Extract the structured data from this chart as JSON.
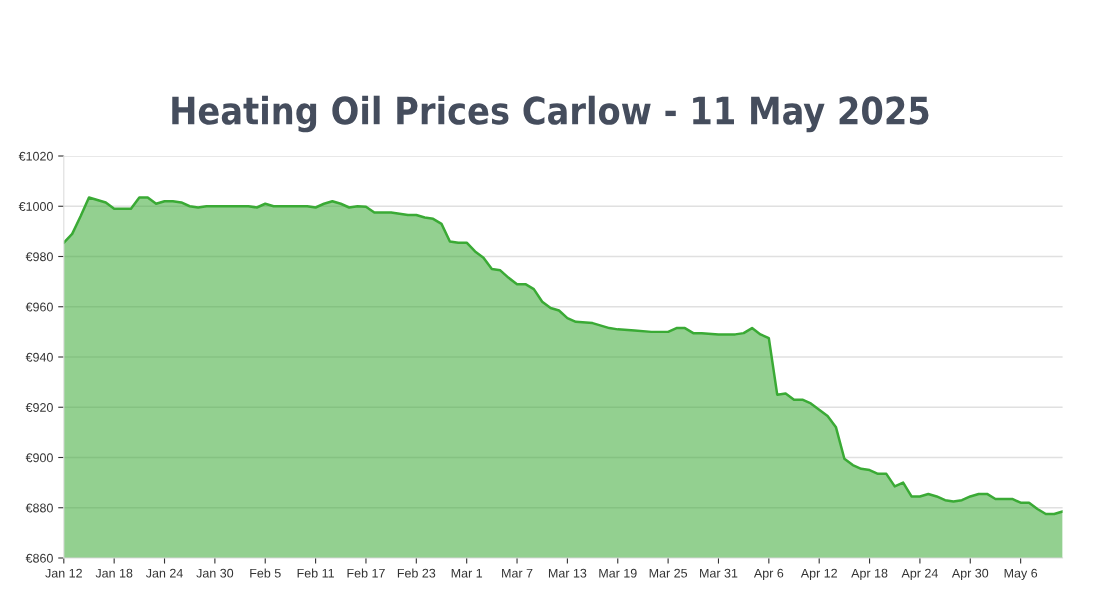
{
  "chart_data": {
    "type": "area",
    "title": "Heating Oil Prices Carlow - 11 May 2025",
    "x": [
      "2025-01-12",
      "2025-01-13",
      "2025-01-14",
      "2025-01-15",
      "2025-01-16",
      "2025-01-17",
      "2025-01-18",
      "2025-01-19",
      "2025-01-20",
      "2025-01-21",
      "2025-01-22",
      "2025-01-23",
      "2025-01-24",
      "2025-01-25",
      "2025-01-26",
      "2025-01-27",
      "2025-01-28",
      "2025-01-29",
      "2025-02-03",
      "2025-02-04",
      "2025-02-05",
      "2025-02-06",
      "2025-02-10",
      "2025-02-11",
      "2025-02-12",
      "2025-02-13",
      "2025-02-14",
      "2025-02-15",
      "2025-02-16",
      "2025-02-17",
      "2025-02-18",
      "2025-02-20",
      "2025-02-21",
      "2025-02-22",
      "2025-02-23",
      "2025-02-24",
      "2025-02-25",
      "2025-02-26",
      "2025-02-27",
      "2025-02-28",
      "2025-03-01",
      "2025-03-02",
      "2025-03-03",
      "2025-03-04",
      "2025-03-05",
      "2025-03-06",
      "2025-03-07",
      "2025-03-08",
      "2025-03-09",
      "2025-03-10",
      "2025-03-11",
      "2025-03-12",
      "2025-03-13",
      "2025-03-14",
      "2025-03-16",
      "2025-03-17",
      "2025-03-18",
      "2025-03-19",
      "2025-03-21",
      "2025-03-23",
      "2025-03-25",
      "2025-03-26",
      "2025-03-27",
      "2025-03-28",
      "2025-03-29",
      "2025-03-31",
      "2025-04-02",
      "2025-04-03",
      "2025-04-04",
      "2025-04-05",
      "2025-04-06",
      "2025-04-07",
      "2025-04-08",
      "2025-04-09",
      "2025-04-10",
      "2025-04-11",
      "2025-04-12",
      "2025-04-13",
      "2025-04-14",
      "2025-04-15",
      "2025-04-16",
      "2025-04-17",
      "2025-04-18",
      "2025-04-19",
      "2025-04-20",
      "2025-04-21",
      "2025-04-22",
      "2025-04-23",
      "2025-04-24",
      "2025-04-25",
      "2025-04-26",
      "2025-04-27",
      "2025-04-28",
      "2025-04-29",
      "2025-04-30",
      "2025-05-01",
      "2025-05-02",
      "2025-05-03",
      "2025-05-05",
      "2025-05-06",
      "2025-05-07",
      "2025-05-08",
      "2025-05-09",
      "2025-05-10",
      "2025-05-11"
    ],
    "series": [
      {
        "color": "#3aaa35",
        "values": [
          985.5,
          989,
          996,
          1003.5,
          1002.5,
          1001.5,
          999,
          999,
          999,
          1003.5,
          1003.5,
          1001,
          1002,
          1002,
          1001.5,
          1000,
          999.5,
          1000,
          1000,
          999.5,
          1001,
          1000,
          1000,
          999.5,
          1001,
          1002,
          1001,
          999.5,
          1000,
          999.8,
          997.5,
          997.5,
          997,
          996.5,
          996.5,
          995.5,
          995,
          993,
          986,
          985.5,
          985.5,
          982,
          979.5,
          975,
          974.5,
          971.5,
          969,
          969,
          967,
          962,
          959.5,
          958.5,
          955.5,
          954,
          953.5,
          952.5,
          951.5,
          951,
          950.5,
          950,
          950,
          951.5,
          951.5,
          949.5,
          949.5,
          949,
          949,
          949.5,
          951.5,
          949,
          947.5,
          925,
          925.5,
          923,
          923,
          921.5,
          919,
          916.5,
          912,
          899.5,
          897,
          895.5,
          895,
          893.5,
          893.5,
          888.5,
          890,
          884.5,
          884.5,
          885.5,
          884.5,
          883,
          882.5,
          883,
          884.5,
          885.5,
          885.5,
          883.5,
          883.5,
          882,
          882,
          879.5,
          877.5,
          877.5,
          878.5
        ]
      }
    ],
    "xlim": [
      "2025-01-12",
      "2025-05-11"
    ],
    "xticks": [
      {
        "value": "2025-01-12",
        "label": "Jan 12"
      },
      {
        "value": "2025-01-18",
        "label": "Jan 18"
      },
      {
        "value": "2025-01-24",
        "label": "Jan 24"
      },
      {
        "value": "2025-01-30",
        "label": "Jan 30"
      },
      {
        "value": "2025-02-05",
        "label": "Feb 5"
      },
      {
        "value": "2025-02-11",
        "label": "Feb 11"
      },
      {
        "value": "2025-02-17",
        "label": "Feb 17"
      },
      {
        "value": "2025-02-23",
        "label": "Feb 23"
      },
      {
        "value": "2025-03-01",
        "label": "Mar 1"
      },
      {
        "value": "2025-03-07",
        "label": "Mar 7"
      },
      {
        "value": "2025-03-13",
        "label": "Mar 13"
      },
      {
        "value": "2025-03-19",
        "label": "Mar 19"
      },
      {
        "value": "2025-03-25",
        "label": "Mar 25"
      },
      {
        "value": "2025-03-31",
        "label": "Mar 31"
      },
      {
        "value": "2025-04-06",
        "label": "Apr 6"
      },
      {
        "value": "2025-04-12",
        "label": "Apr 12"
      },
      {
        "value": "2025-04-18",
        "label": "Apr 18"
      },
      {
        "value": "2025-04-24",
        "label": "Apr 24"
      },
      {
        "value": "2025-04-30",
        "label": "Apr 30"
      },
      {
        "value": "2025-05-06",
        "label": "May 6"
      }
    ],
    "ylim": [
      860,
      1020
    ],
    "yticks": [
      {
        "value": 860,
        "label": "€860"
      },
      {
        "value": 880,
        "label": "€880"
      },
      {
        "value": 900,
        "label": "€900"
      },
      {
        "value": 920,
        "label": "€920"
      },
      {
        "value": 940,
        "label": "€940"
      },
      {
        "value": 960,
        "label": "€960"
      },
      {
        "value": 980,
        "label": "€980"
      },
      {
        "value": 1000,
        "label": "€1000"
      },
      {
        "value": 1020,
        "label": "€1020"
      }
    ],
    "grid": "y"
  }
}
